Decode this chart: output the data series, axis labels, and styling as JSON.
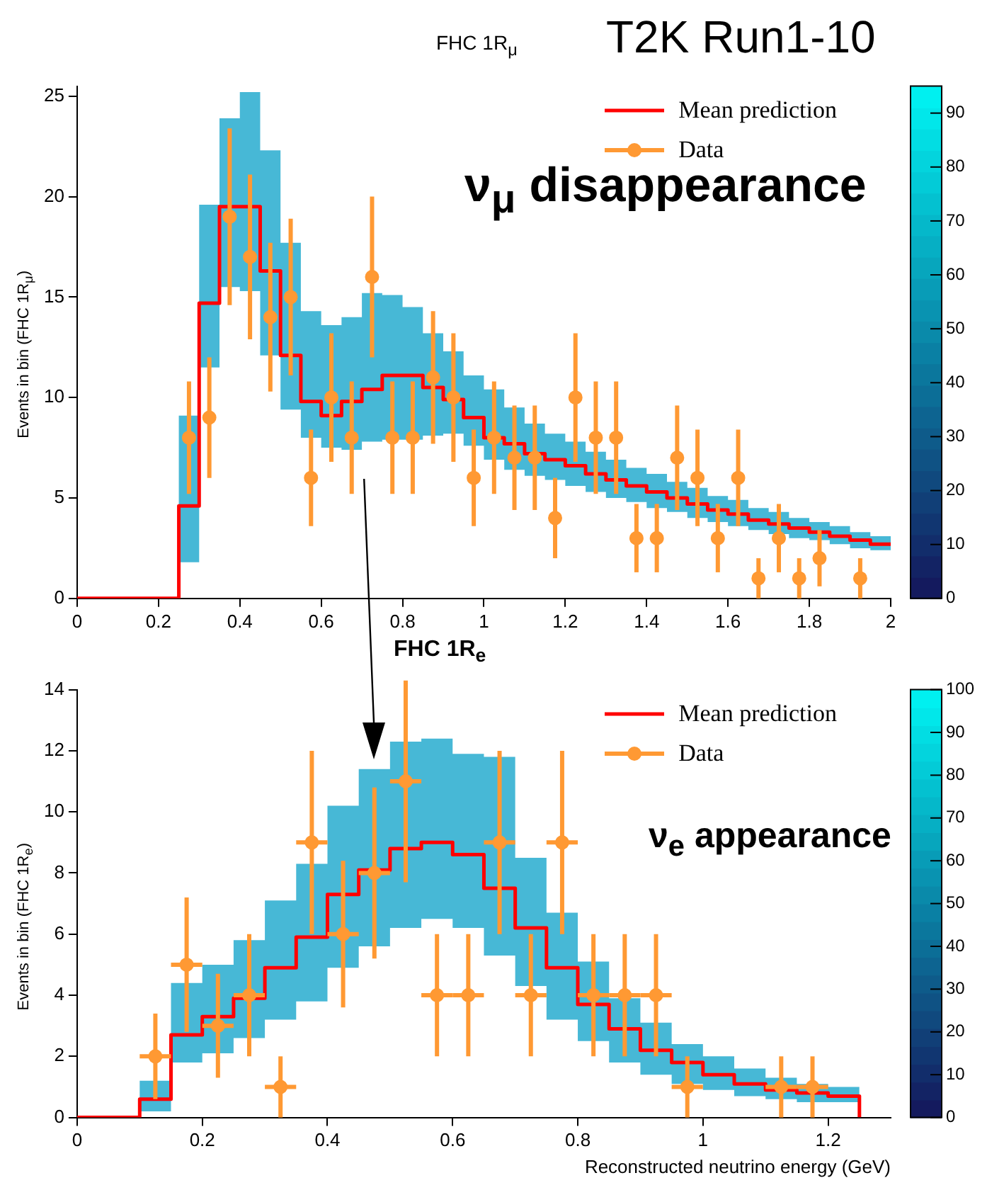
{
  "chart_data": [
    {
      "type": "step",
      "title": "FHC 1R$_{μ}$",
      "subtitle": "T2K Run1-10",
      "ylabel": "Events in bin (FHC 1R$_{μ}$)",
      "annotations": [
        "ν$_{μ}$ disappearance"
      ],
      "legend": "top right",
      "xlim": [
        0,
        2
      ],
      "xticks": [
        0,
        0.2,
        0.4,
        0.6,
        0.8,
        1,
        1.2,
        1.4,
        1.6,
        1.8,
        2
      ],
      "ylim": [
        0,
        25.5
      ],
      "yticks": [
        0,
        5,
        10,
        15,
        20,
        25
      ],
      "clim": [
        0,
        95
      ],
      "cticks": [
        0,
        10,
        20,
        30,
        40,
        50,
        60,
        70,
        80,
        90
      ],
      "series": [
        {
          "name": "Mean prediction",
          "color": "#ff0000",
          "x": [
            0,
            0.05,
            0.1,
            0.15,
            0.2,
            0.25,
            0.3,
            0.35,
            0.4,
            0.45,
            0.5,
            0.55,
            0.6,
            0.65,
            0.7,
            0.75,
            0.8,
            0.85,
            0.9,
            0.95,
            1.0,
            1.05,
            1.1,
            1.15,
            1.2,
            1.25,
            1.3,
            1.35,
            1.4,
            1.45,
            1.5,
            1.55,
            1.6,
            1.65,
            1.7,
            1.75,
            1.8,
            1.85,
            1.9,
            1.95,
            2.0
          ],
          "values": [
            0,
            0,
            0,
            0,
            0,
            4.6,
            14.7,
            19.5,
            19.5,
            16.3,
            12.1,
            9.8,
            9.1,
            9.8,
            10.4,
            11.1,
            11.1,
            10.5,
            9.9,
            9.0,
            8.0,
            7.7,
            7.2,
            6.9,
            6.6,
            6.2,
            5.9,
            5.6,
            5.3,
            5.0,
            4.7,
            4.4,
            4.2,
            3.9,
            3.7,
            3.5,
            3.3,
            3.1,
            2.9,
            2.7,
            2.7
          ],
          "lower": [
            0,
            0,
            0,
            0,
            0,
            1.8,
            11.5,
            15.5,
            15.3,
            12.1,
            9.4,
            8,
            7.5,
            7.4,
            7.8,
            7.9,
            7.9,
            8.1,
            8.2,
            7.6,
            6.9,
            6.4,
            6.1,
            5.9,
            5.6,
            5.3,
            5.0,
            4.8,
            4.5,
            4.3,
            4.0,
            3.8,
            3.6,
            3.4,
            3.2,
            3.0,
            2.9,
            2.7,
            2.5,
            2.4,
            2.4
          ],
          "upper": [
            0,
            0,
            0,
            0,
            0,
            9.1,
            19.6,
            23.9,
            25.2,
            22.3,
            17.7,
            14.3,
            13.6,
            14,
            15.2,
            15.1,
            14.5,
            13.2,
            12.3,
            11.1,
            10.4,
            9.5,
            8.7,
            8.2,
            7.8,
            7.3,
            6.9,
            6.5,
            6.2,
            5.8,
            5.5,
            5.1,
            4.9,
            4.5,
            4.3,
            4.0,
            3.8,
            3.6,
            3.3,
            3.1,
            3.1
          ]
        },
        {
          "name": "Data",
          "type": "scatter",
          "marker": "circle",
          "color": "#ff9933",
          "x": [
            0.275,
            0.325,
            0.375,
            0.425,
            0.475,
            0.525,
            0.575,
            0.625,
            0.675,
            0.725,
            0.775,
            0.825,
            0.875,
            0.925,
            0.975,
            1.025,
            1.075,
            1.125,
            1.175,
            1.225,
            1.275,
            1.325,
            1.375,
            1.425,
            1.475,
            1.525,
            1.575,
            1.625,
            1.675,
            1.725,
            1.775,
            1.825,
            1.925
          ],
          "values": [
            8,
            9,
            19,
            17,
            14,
            15,
            6,
            10,
            8,
            16,
            8,
            8,
            11,
            10,
            6,
            8,
            7,
            7,
            4,
            10,
            8,
            8,
            3,
            3,
            7,
            6,
            3,
            6,
            1,
            3,
            1,
            2,
            1
          ],
          "errors": [
            2.8,
            3,
            4.4,
            4.1,
            3.7,
            3.9,
            2.4,
            3.2,
            2.8,
            4,
            2.8,
            2.8,
            3.3,
            3.2,
            2.4,
            2.8,
            2.6,
            2.6,
            2,
            3.2,
            2.8,
            2.8,
            1.7,
            1.7,
            2.6,
            2.4,
            1.7,
            2.4,
            1,
            1.7,
            1,
            1.4,
            1
          ]
        }
      ]
    },
    {
      "type": "step",
      "title": "FHC 1R$_{e}$",
      "xlabel": "Reconstructed neutrino energy (GeV)",
      "ylabel": "Events in bin (FHC 1R$_{e}$)",
      "annotations": [
        "ν$_{e}$ appearance"
      ],
      "legend": "top right",
      "xlim": [
        0,
        1.3
      ],
      "xticks": [
        0,
        0.2,
        0.4,
        0.6,
        0.8,
        1,
        1.2
      ],
      "ylim": [
        0,
        14
      ],
      "yticks": [
        0,
        2,
        4,
        6,
        8,
        10,
        12,
        14
      ],
      "clim": [
        0,
        100
      ],
      "cticks": [
        0,
        10,
        20,
        30,
        40,
        50,
        60,
        70,
        80,
        90,
        100
      ],
      "series": [
        {
          "name": "Mean prediction",
          "color": "#ff0000",
          "x": [
            0,
            0.05,
            0.1,
            0.15,
            0.2,
            0.25,
            0.3,
            0.35,
            0.4,
            0.45,
            0.5,
            0.55,
            0.6,
            0.65,
            0.7,
            0.75,
            0.8,
            0.85,
            0.9,
            0.95,
            1.0,
            1.05,
            1.1,
            1.15,
            1.2,
            1.25
          ],
          "values": [
            0,
            0,
            0.6,
            2.7,
            3.3,
            3.9,
            4.9,
            5.9,
            7.3,
            8.1,
            8.8,
            9.0,
            8.6,
            7.5,
            6.2,
            4.9,
            3.7,
            2.9,
            2.2,
            1.8,
            1.4,
            1.1,
            0.9,
            0.8,
            0.7,
            0
          ],
          "lower": [
            0,
            0,
            0.2,
            1.8,
            2.1,
            2.6,
            3.2,
            3.8,
            4.9,
            5.6,
            6.2,
            6.5,
            6.2,
            5.3,
            4.3,
            3.2,
            2.5,
            1.8,
            1.4,
            1.1,
            0.9,
            0.7,
            0.6,
            0.5,
            0.5,
            0
          ],
          "upper": [
            0,
            0,
            1.2,
            4.4,
            5,
            5.8,
            7.1,
            8.3,
            10.2,
            11.4,
            12.3,
            12.4,
            11.9,
            11.8,
            8.5,
            6.7,
            5.1,
            3.9,
            3.1,
            2.4,
            2.0,
            1.6,
            1.3,
            1.1,
            1.0,
            0
          ]
        },
        {
          "name": "Data",
          "type": "scatter",
          "marker": "circle",
          "color": "#ff9933",
          "x": [
            0.125,
            0.175,
            0.225,
            0.275,
            0.325,
            0.375,
            0.425,
            0.475,
            0.525,
            0.575,
            0.625,
            0.675,
            0.725,
            0.775,
            0.825,
            0.875,
            0.925,
            0.975,
            1.125,
            1.175
          ],
          "values": [
            2,
            5,
            3,
            4,
            1,
            9,
            6,
            8,
            11,
            4,
            4,
            9,
            4,
            9,
            4,
            4,
            4,
            1,
            1,
            1
          ],
          "errors": [
            1.4,
            2.2,
            1.7,
            2,
            1,
            3,
            2.4,
            2.8,
            3.3,
            2,
            2,
            3,
            2,
            3,
            2,
            2,
            2,
            1,
            1,
            1
          ],
          "xerrors": [
            0.025,
            0.025,
            0.025,
            0.025,
            0.025,
            0.025,
            0.025,
            0.025,
            0.025,
            0.025,
            0.025,
            0.025,
            0.025,
            0.025,
            0.025,
            0.025,
            0.025,
            0.025,
            0.025,
            0.025
          ]
        }
      ]
    }
  ]
}
